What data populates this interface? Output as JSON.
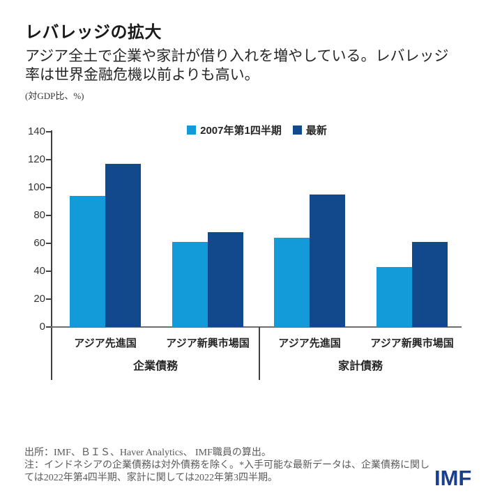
{
  "header": {
    "title": "レバレッジの拡大",
    "subtitle": "アジア全土で企業や家計が借り入れを増やしている。レバレッジ率は世界金融危機以前よりも高い。",
    "unit_label": "(対GDP比、%)"
  },
  "chart_data": {
    "type": "bar",
    "title": "レバレッジの拡大",
    "ylabel": "(対GDP比、%)",
    "ylim": [
      0,
      140
    ],
    "yticks": [
      0,
      20,
      40,
      60,
      80,
      100,
      120,
      140
    ],
    "grid": false,
    "legend_position": "top-center",
    "groups": [
      {
        "label": "企業債務",
        "categories": [
          "アジア先進国",
          "アジア新興市場国"
        ]
      },
      {
        "label": "家計債務",
        "categories": [
          "アジア先進国",
          "アジア新興市場国"
        ]
      }
    ],
    "series": [
      {
        "name": "2007年第1四半期",
        "color": "#129bd8",
        "values": [
          94,
          61,
          64,
          43
        ]
      },
      {
        "name": "最新",
        "color": "#12498c",
        "values": [
          117,
          68,
          95,
          61
        ]
      }
    ]
  },
  "footer": {
    "source": "出所：IMF、ＢＩＳ、Haver Analytics、 IMF職員の算出。",
    "note": "注：インドネシアの企業債務は対外債務を除く。*入手可能な最新データは、企業債務に関しては2022年第4四半期、家計に関しては2022年第3四半期。",
    "logo": "IMF"
  },
  "colors": {
    "series_2007q1": "#129bd8",
    "series_latest": "#12498c",
    "axis": "#404040",
    "baseline": "#6e6e6e",
    "footer_text": "#595959",
    "logo": "#1a3e90"
  }
}
